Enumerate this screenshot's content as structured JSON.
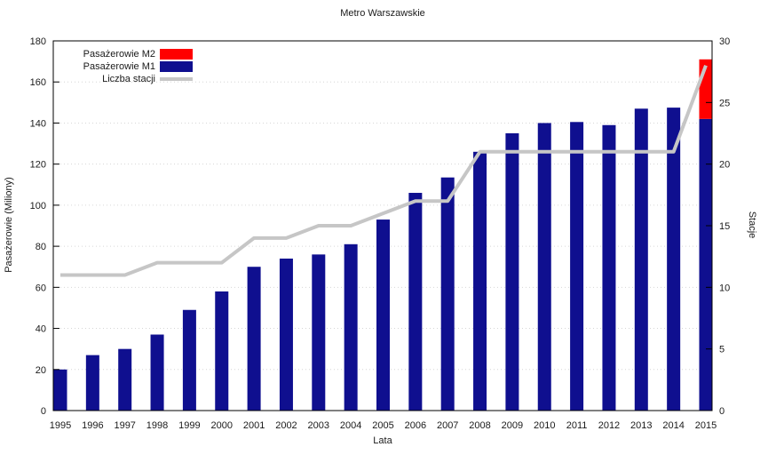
{
  "title": "Metro Warszawskie",
  "colors": {
    "m1": "#0f0f8f",
    "m2": "#ff0000",
    "line": "#c6c6c6",
    "grid": "#d6d6d6",
    "axis": "#000000",
    "text": "#1a1a1a"
  },
  "legend": {
    "items": [
      {
        "label": "Pasażerowie M2",
        "swatch": "m2",
        "style": "box"
      },
      {
        "label": "Pasażerowie M1",
        "swatch": "m1",
        "style": "box"
      },
      {
        "label": "Liczba stacji",
        "swatch": "line",
        "style": "line"
      }
    ]
  },
  "axes": {
    "left_label": "Pasażerowie (Miliony)",
    "right_label": "Stacje",
    "x_label": "Lata",
    "left_ticks": [
      0,
      20,
      40,
      60,
      80,
      100,
      120,
      140,
      160,
      180
    ],
    "right_ticks": [
      0,
      5,
      10,
      15,
      20,
      25,
      30
    ],
    "left_max": 180,
    "right_max": 30
  },
  "chart_data": {
    "type": "bar",
    "title": "Metro Warszawskie",
    "xlabel": "Lata",
    "ylabel": "Pasażerowie (Miliony)",
    "y2label": "Stacje",
    "ylim": [
      0,
      180
    ],
    "y2lim": [
      0,
      30
    ],
    "grid": "dotted horizontal at every 20 (left axis)",
    "legend_position": "top-left inside plot",
    "categories": [
      1995,
      1996,
      1997,
      1998,
      1999,
      2000,
      2001,
      2002,
      2003,
      2004,
      2005,
      2006,
      2007,
      2008,
      2009,
      2010,
      2011,
      2012,
      2013,
      2014,
      2015
    ],
    "series": [
      {
        "name": "Pasażerowie M1",
        "type": "bar",
        "axis": "left",
        "color_key": "m1",
        "values": [
          20,
          27,
          30,
          37,
          49,
          58,
          70,
          74,
          76,
          81,
          93,
          106,
          113.5,
          126,
          135,
          140,
          140.5,
          139,
          147,
          147.5,
          142
        ]
      },
      {
        "name": "Pasażerowie M2",
        "type": "bar",
        "axis": "left",
        "stacked_on": "Pasażerowie M1",
        "color_key": "m2",
        "values": [
          0,
          0,
          0,
          0,
          0,
          0,
          0,
          0,
          0,
          0,
          0,
          0,
          0,
          0,
          0,
          0,
          0,
          0,
          0,
          0,
          29
        ]
      },
      {
        "name": "Liczba stacji",
        "type": "line",
        "axis": "right",
        "color_key": "line",
        "values": [
          11,
          11,
          11,
          12,
          12,
          12,
          14,
          14,
          15,
          15,
          16,
          17,
          17,
          21,
          21,
          21,
          21,
          21,
          21,
          21,
          28
        ]
      }
    ]
  }
}
